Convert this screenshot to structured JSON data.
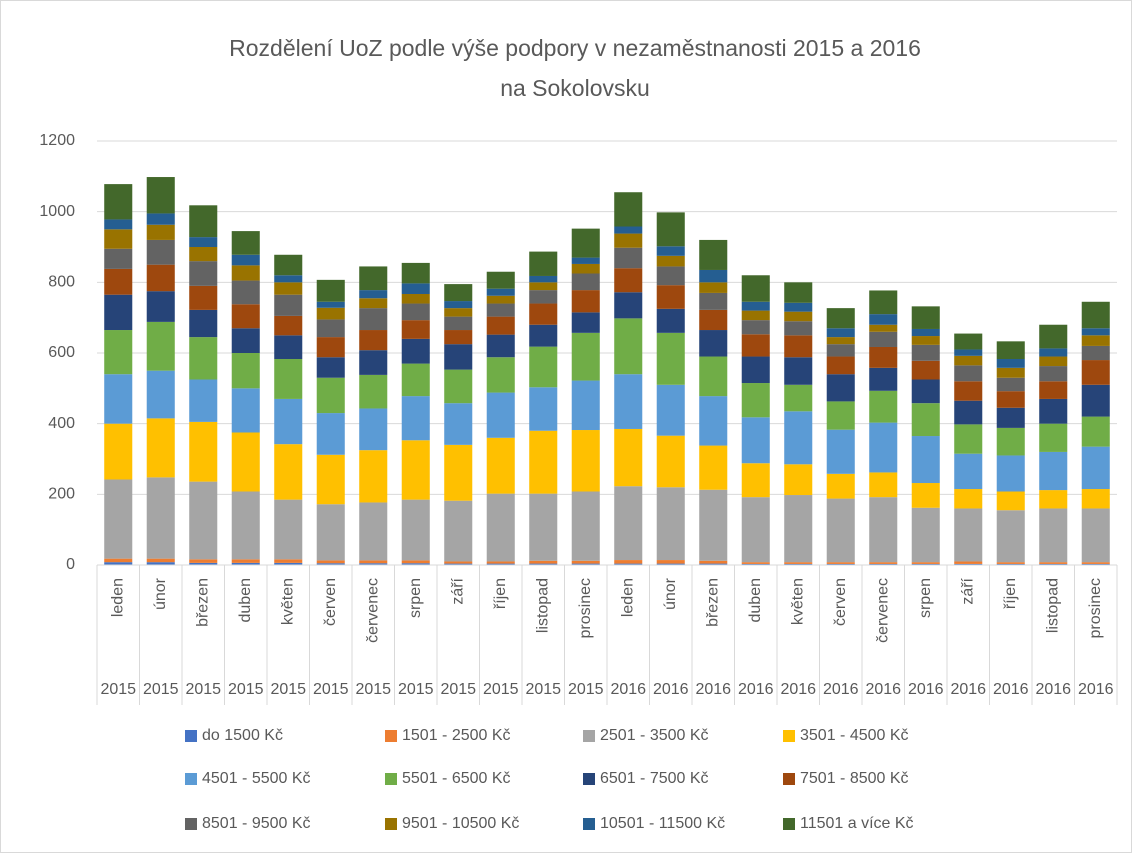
{
  "chart_data": {
    "type": "stacked-bar",
    "title": [
      "Rozdělení UoZ podle výše podpory v nezaměstnanosti 2015 a 2016",
      "na Sokolovsku"
    ],
    "categories": [
      "leden",
      "únor",
      "březen",
      "duben",
      "květen",
      "červen",
      "červenec",
      "srpen",
      "září",
      "říjen",
      "listopad",
      "prosinec",
      "leden",
      "únor",
      "březen",
      "duben",
      "květen",
      "červen",
      "červenec",
      "srpen",
      "září",
      "říjen",
      "listopad",
      "prosinec"
    ],
    "groups": [
      "2015",
      "2015",
      "2015",
      "2015",
      "2015",
      "2015",
      "2015",
      "2015",
      "2015",
      "2015",
      "2015",
      "2015",
      "2016",
      "2016",
      "2016",
      "2016",
      "2016",
      "2016",
      "2016",
      "2016",
      "2016",
      "2016",
      "2016",
      "2016"
    ],
    "ylim": [
      0,
      1200
    ],
    "yticks": [
      0,
      200,
      400,
      600,
      800,
      1000,
      1200
    ],
    "grid": true,
    "legend": "bottom",
    "series": [
      {
        "name": "do 1500 Kč",
        "color": "#4472c4",
        "values": [
          8,
          8,
          6,
          6,
          6,
          5,
          5,
          5,
          4,
          4,
          4,
          4,
          4,
          4,
          4,
          3,
          3,
          3,
          3,
          3,
          3,
          3,
          3,
          3
        ]
      },
      {
        "name": "1501 - 2500 Kč",
        "color": "#ed7d31",
        "values": [
          10,
          10,
          10,
          10,
          10,
          8,
          8,
          8,
          6,
          6,
          8,
          8,
          10,
          10,
          8,
          5,
          5,
          5,
          5,
          5,
          7,
          5,
          5,
          5
        ]
      },
      {
        "name": "2501 - 3500 Kč",
        "color": "#a5a5a5",
        "values": [
          224,
          230,
          220,
          192,
          169,
          159,
          164,
          172,
          172,
          192,
          190,
          196,
          209,
          206,
          201,
          184,
          190,
          180,
          184,
          154,
          150,
          147,
          152,
          152
        ]
      },
      {
        "name": "3501 - 4500 Kč",
        "color": "#ffc000",
        "values": [
          158,
          167,
          169,
          167,
          157,
          140,
          148,
          168,
          158,
          158,
          178,
          174,
          162,
          146,
          125,
          96,
          87,
          70,
          70,
          70,
          55,
          53,
          52,
          55
        ]
      },
      {
        "name": "4501 - 5500 Kč",
        "color": "#5b9bd5",
        "values": [
          140,
          135,
          120,
          125,
          128,
          118,
          118,
          125,
          118,
          128,
          123,
          140,
          155,
          144,
          140,
          130,
          150,
          125,
          141,
          133,
          100,
          102,
          108,
          120
        ]
      },
      {
        "name": "5501 - 6500 Kč",
        "color": "#70ad47",
        "values": [
          125,
          138,
          120,
          100,
          113,
          100,
          95,
          92,
          95,
          100,
          115,
          135,
          158,
          147,
          112,
          97,
          75,
          80,
          90,
          93,
          83,
          78,
          80,
          85
        ]
      },
      {
        "name": "6501 - 7500 Kč",
        "color": "#264478",
        "values": [
          100,
          87,
          77,
          70,
          67,
          58,
          70,
          70,
          72,
          64,
          62,
          58,
          74,
          68,
          75,
          75,
          78,
          77,
          65,
          67,
          67,
          57,
          70,
          90
        ]
      },
      {
        "name": "7501 - 8500 Kč",
        "color": "#9e480e",
        "values": [
          73,
          75,
          68,
          68,
          55,
          57,
          57,
          53,
          40,
          51,
          60,
          63,
          68,
          67,
          57,
          63,
          62,
          50,
          59,
          53,
          55,
          47,
          50,
          70
        ]
      },
      {
        "name": "8501 - 9500 Kč",
        "color": "#636363",
        "values": [
          57,
          70,
          70,
          67,
          60,
          50,
          62,
          47,
          38,
          37,
          38,
          47,
          58,
          53,
          48,
          40,
          40,
          35,
          43,
          45,
          45,
          38,
          43,
          40
        ]
      },
      {
        "name": "9501 - 10500 Kč",
        "color": "#997300",
        "values": [
          55,
          43,
          40,
          43,
          35,
          33,
          28,
          27,
          24,
          22,
          22,
          27,
          40,
          30,
          30,
          27,
          27,
          20,
          20,
          25,
          27,
          28,
          27,
          30
        ]
      },
      {
        "name": "10501 - 11500 Kč",
        "color": "#255e91",
        "values": [
          28,
          32,
          28,
          30,
          20,
          17,
          23,
          30,
          20,
          20,
          18,
          18,
          20,
          27,
          35,
          25,
          25,
          25,
          30,
          20,
          18,
          25,
          23,
          20
        ]
      },
      {
        "name": "11501 a více Kč",
        "color": "#43682b",
        "values": [
          100,
          103,
          90,
          67,
          58,
          62,
          67,
          58,
          48,
          48,
          69,
          82,
          97,
          96,
          85,
          75,
          58,
          57,
          67,
          64,
          45,
          50,
          67,
          75
        ]
      }
    ]
  }
}
